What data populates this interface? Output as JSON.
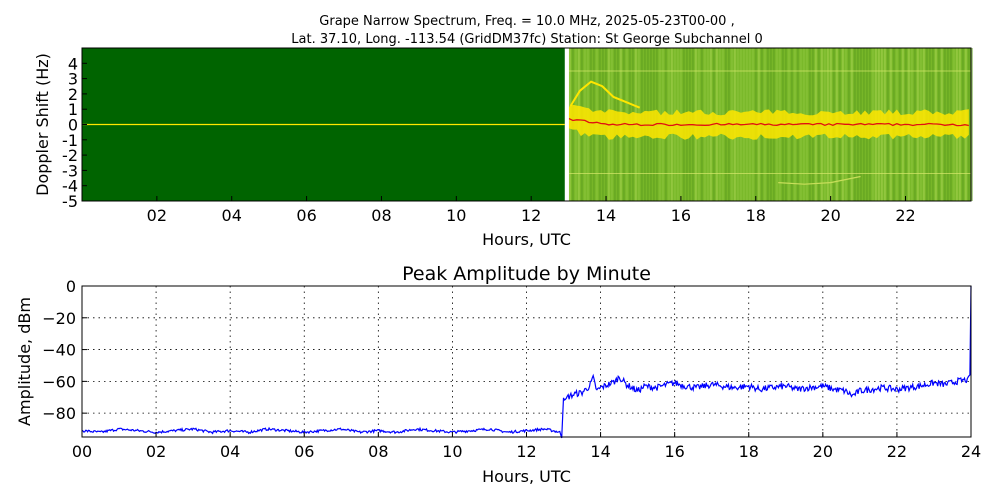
{
  "figure": {
    "title_line1": "Grape Narrow Spectrum, Freq. = 10.0 MHz, 2025-05-23T00-00 ,",
    "title_line2": "Lat.  37.10, Long. -113.54 (GridDM37fc) Station: St George Subchannel 0"
  },
  "chart_data": [
    {
      "type": "heatmap",
      "title": "",
      "xlabel": "Hours, UTC",
      "ylabel": "Doppler Shift (Hz)",
      "xlim": [
        0,
        23.75
      ],
      "ylim": [
        -5,
        5
      ],
      "x_tick_labels": [
        "02",
        "04",
        "06",
        "08",
        "10",
        "12",
        "14",
        "16",
        "18",
        "20",
        "22"
      ],
      "x_ticks": [
        2,
        4,
        6,
        8,
        10,
        12,
        14,
        16,
        18,
        20,
        22
      ],
      "y_ticks": [
        4,
        3,
        2,
        1,
        0,
        -1,
        -2,
        -3,
        -4,
        -5
      ],
      "y_tick_labels": [
        "4",
        "3",
        "2",
        "1",
        "0",
        "-1",
        "-2",
        "-3",
        "-4",
        "-5"
      ],
      "data_gap_hour": 12.9,
      "colors": {
        "background_no_signal": "#006400",
        "noise": "#79b82a",
        "carrier": "#ffe600",
        "peak": "#e01010",
        "gap": "#ffffff"
      }
    },
    {
      "type": "line",
      "title": "Peak Amplitude by Minute",
      "xlabel": "Hours, UTC",
      "ylabel": "Amplitude, dBm",
      "xlim": [
        0,
        24
      ],
      "ylim": [
        -95,
        0
      ],
      "grid": true,
      "x_tick_labels": [
        "00",
        "02",
        "04",
        "06",
        "08",
        "10",
        "12",
        "14",
        "16",
        "18",
        "20",
        "22",
        "24"
      ],
      "x_ticks": [
        0,
        2,
        4,
        6,
        8,
        10,
        12,
        14,
        16,
        18,
        20,
        22,
        24
      ],
      "y_ticks": [
        0,
        -20,
        -40,
        -60,
        -80
      ],
      "y_tick_labels": [
        "0",
        "−20",
        "−40",
        "−60",
        "−80"
      ],
      "color": "#0000ff",
      "series": [
        {
          "x": [
            0,
            0.5,
            1,
            1.5,
            2,
            2.5,
            3,
            3.5,
            4,
            4.5,
            5,
            5.5,
            6,
            6.5,
            7,
            7.5,
            8,
            8.5,
            9,
            9.5,
            10,
            10.5,
            11,
            11.5,
            12,
            12.5,
            12.9,
            12.95,
            13.0,
            13.05,
            13.1,
            13.3,
            13.5,
            13.7,
            13.8,
            13.9,
            14.0,
            14.2,
            14.4,
            14.5,
            14.7,
            15.0,
            15.2,
            15.5,
            15.8,
            16.0,
            16.3,
            16.6,
            17.0,
            17.3,
            17.6,
            18.0,
            18.3,
            18.6,
            19.0,
            19.3,
            19.6,
            20.0,
            20.3,
            20.6,
            20.8,
            21.0,
            21.3,
            21.6,
            22.0,
            22.3,
            22.6,
            23.0,
            23.3,
            23.6,
            23.9,
            23.97,
            24.0
          ],
          "y": [
            -91,
            -92,
            -90,
            -91,
            -92,
            -91,
            -90,
            -92,
            -91,
            -92,
            -90,
            -91,
            -92,
            -91,
            -90,
            -92,
            -91,
            -92,
            -90,
            -91,
            -92,
            -91,
            -90,
            -92,
            -91,
            -90,
            -92,
            -95,
            -70,
            -72,
            -70,
            -68,
            -67,
            -63,
            -58,
            -66,
            -64,
            -62,
            -60,
            -57,
            -62,
            -66,
            -63,
            -64,
            -62,
            -61,
            -63,
            -64,
            -62,
            -63,
            -64,
            -63,
            -65,
            -64,
            -63,
            -65,
            -64,
            -63,
            -65,
            -66,
            -69,
            -66,
            -65,
            -64,
            -65,
            -64,
            -63,
            -61,
            -62,
            -60,
            -59,
            -56,
            0
          ]
        }
      ]
    }
  ]
}
